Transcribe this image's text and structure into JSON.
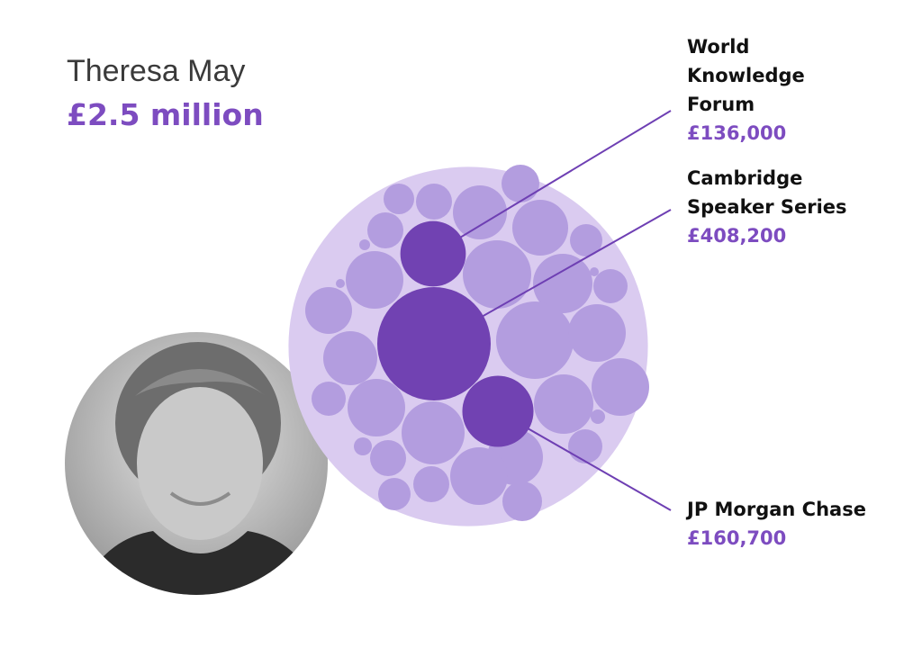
{
  "chart_data": {
    "type": "bubble",
    "title": "Theresa May",
    "total": 2500000,
    "total_label": "£2.5 million",
    "colors": {
      "outer": "#dacbf0",
      "bubble": "#b39ddf",
      "highlight": "#7142b2",
      "line": "#6e3fb3"
    },
    "series": [
      {
        "name": "World Knowledge Forum",
        "value": 136000,
        "value_label": "£136,000"
      },
      {
        "name": "Cambridge Speaker Series",
        "value": 408200,
        "value_label": "£408,200"
      },
      {
        "name": "JP Morgan Chase",
        "value": 160700,
        "value_label": "£160,700"
      }
    ]
  }
}
